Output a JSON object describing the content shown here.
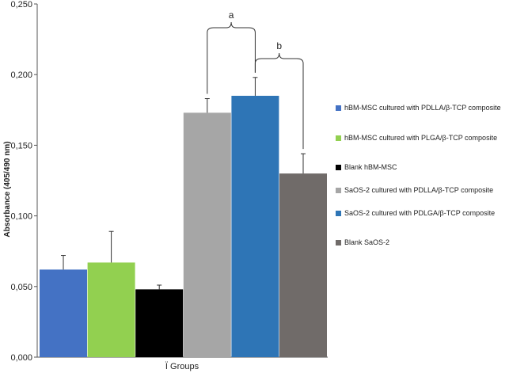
{
  "chart_data": {
    "type": "bar",
    "title": "",
    "xlabel": "Ï Groups",
    "ylabel": "Absorbance  (405/490 nm)",
    "ylim": [
      0,
      0.25
    ],
    "yticks": [
      "0,000",
      "0,050",
      "0,100",
      "0,150",
      "0,200",
      "0,250"
    ],
    "grid": false,
    "legend_position": "right",
    "categories": [
      "hBM-MSC cultured with PDLLA/β-TCP composite",
      "hBM-MSC cultured with PLGA/β-TCP composite",
      "Blank hBM-MSC",
      "SaOS-2 cultured with PDLLA/β-TCP  composite",
      "SaOS-2 cultured with PDLGA/β-TCP  composite",
      "Blank SaOS-2"
    ],
    "values": [
      0.062,
      0.067,
      0.048,
      0.173,
      0.185,
      0.13
    ],
    "errors": [
      0.01,
      0.022,
      0.003,
      0.01,
      0.013,
      0.014
    ],
    "colors": [
      "#4472c4",
      "#92d050",
      "#000000",
      "#a6a6a6",
      "#2e75b6",
      "#706b69"
    ],
    "annotations": [
      "a",
      "b"
    ]
  }
}
